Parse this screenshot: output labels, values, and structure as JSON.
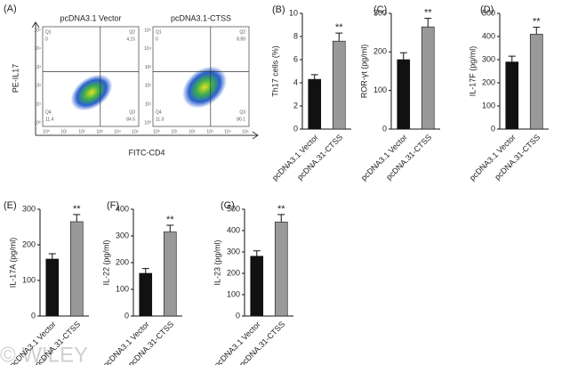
{
  "panel_a": {
    "label": "(A)",
    "ylabel": "PE-IL17",
    "xlabel": "FITC-CD4",
    "ticks": [
      "10⁰",
      "10¹",
      "10²",
      "10³",
      "10⁴",
      "10⁵"
    ],
    "plots": [
      {
        "title": "pcDNA3.1 Vector",
        "quadrants": [
          {
            "name": "Q1",
            "value": "0"
          },
          {
            "name": "Q2",
            "value": "4.15"
          },
          {
            "name": "Q3",
            "value": "84.5"
          },
          {
            "name": "Q4",
            "value": "11.4"
          }
        ]
      },
      {
        "title": "pcDNA3.1-CTSS",
        "quadrants": [
          {
            "name": "Q1",
            "value": "0"
          },
          {
            "name": "Q2",
            "value": "8.89"
          },
          {
            "name": "Q3",
            "value": "80.1"
          },
          {
            "name": "Q4",
            "value": "11.0"
          }
        ]
      }
    ]
  },
  "watermark": "© WILEY",
  "chart_data": [
    {
      "type": "bar",
      "label": "(B)",
      "ylabel": "Th17 cells (%)",
      "categories": [
        "pcDNA3.1 Vector",
        "pcDNA.31-CTSS"
      ],
      "values": [
        4.3,
        7.6
      ],
      "errors": [
        0.4,
        0.7
      ],
      "colors": [
        "#111111",
        "#999999"
      ],
      "annotation": "**",
      "ylim": [
        0,
        10
      ],
      "yticks": [
        0,
        2,
        4,
        6,
        8,
        10
      ]
    },
    {
      "type": "bar",
      "label": "(C)",
      "ylabel": "ROR-γt (pg/ml)",
      "categories": [
        "pcDNA3.1 Vector",
        "pcDNA.31-CTSS"
      ],
      "values": [
        180,
        265
      ],
      "errors": [
        18,
        22
      ],
      "colors": [
        "#111111",
        "#999999"
      ],
      "annotation": "**",
      "ylim": [
        0,
        300
      ],
      "yticks": [
        0,
        100,
        200,
        300
      ]
    },
    {
      "type": "bar",
      "label": "(D)",
      "ylabel": "IL-17F (pg/ml)",
      "categories": [
        "pcDNA3.1 Vector",
        "pcDNA.31-CTSS"
      ],
      "values": [
        290,
        410
      ],
      "errors": [
        25,
        30
      ],
      "colors": [
        "#111111",
        "#999999"
      ],
      "annotation": "**",
      "ylim": [
        0,
        500
      ],
      "yticks": [
        0,
        100,
        200,
        300,
        400,
        500
      ]
    },
    {
      "type": "bar",
      "label": "(E)",
      "ylabel": "IL-17A (pg/ml)",
      "categories": [
        "pcDNA3.1 Vector",
        "pcDNA.31-CTSS"
      ],
      "values": [
        160,
        265
      ],
      "errors": [
        15,
        20
      ],
      "colors": [
        "#111111",
        "#999999"
      ],
      "annotation": "**",
      "ylim": [
        0,
        300
      ],
      "yticks": [
        0,
        100,
        200,
        300
      ]
    },
    {
      "type": "bar",
      "label": "(F)",
      "ylabel": "IL-22 (pg/ml)",
      "categories": [
        "pcDNA3.1 Vector",
        "pcDNA.31-CTSS"
      ],
      "values": [
        160,
        315
      ],
      "errors": [
        18,
        25
      ],
      "colors": [
        "#111111",
        "#999999"
      ],
      "annotation": "**",
      "ylim": [
        0,
        400
      ],
      "yticks": [
        0,
        100,
        200,
        300,
        400
      ]
    },
    {
      "type": "bar",
      "label": "(G)",
      "ylabel": "IL-23 (pg/ml)",
      "categories": [
        "pcDNA3.1 Vector",
        "pcDNA.31-CTSS"
      ],
      "values": [
        280,
        440
      ],
      "errors": [
        25,
        35
      ],
      "colors": [
        "#111111",
        "#999999"
      ],
      "annotation": "**",
      "ylim": [
        0,
        500
      ],
      "yticks": [
        0,
        100,
        200,
        300,
        400,
        500
      ]
    }
  ]
}
